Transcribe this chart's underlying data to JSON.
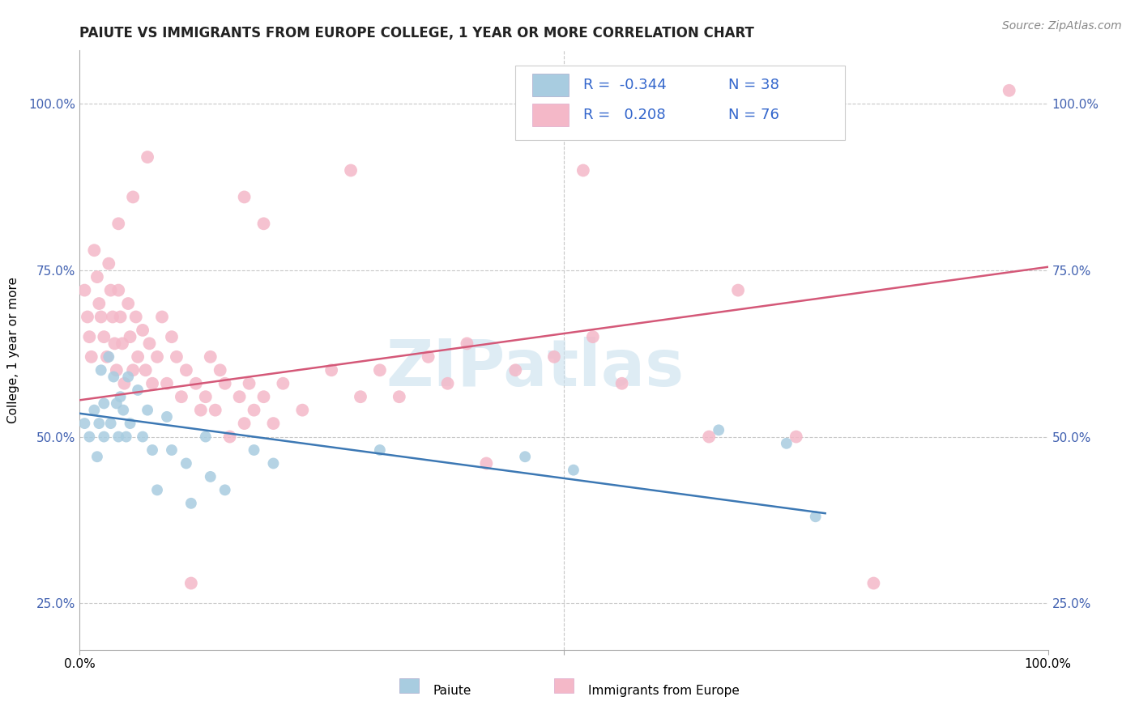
{
  "title": "PAIUTE VS IMMIGRANTS FROM EUROPE COLLEGE, 1 YEAR OR MORE CORRELATION CHART",
  "source_text": "Source: ZipAtlas.com",
  "ylabel": "College, 1 year or more",
  "xlim": [
    0.0,
    1.0
  ],
  "ylim": [
    0.18,
    1.08
  ],
  "ytick_labels": [
    "25.0%",
    "50.0%",
    "75.0%",
    "100.0%"
  ],
  "ytick_positions": [
    0.25,
    0.5,
    0.75,
    1.0
  ],
  "xtick_positions": [
    0.0,
    0.5,
    1.0
  ],
  "xtick_labels": [
    "0.0%",
    "",
    "100.0%"
  ],
  "legend_r_blue": "-0.344",
  "legend_n_blue": "38",
  "legend_r_pink": "0.208",
  "legend_n_pink": "76",
  "watermark": "ZIPatlas",
  "blue_color": "#a8cce0",
  "pink_color": "#f4b8c8",
  "blue_line_color": "#3c78b4",
  "pink_line_color": "#d45878",
  "grid_color": "#c8c8c8",
  "blue_scatter": [
    [
      0.005,
      0.52
    ],
    [
      0.01,
      0.5
    ],
    [
      0.015,
      0.54
    ],
    [
      0.018,
      0.47
    ],
    [
      0.02,
      0.52
    ],
    [
      0.022,
      0.6
    ],
    [
      0.025,
      0.55
    ],
    [
      0.025,
      0.5
    ],
    [
      0.03,
      0.62
    ],
    [
      0.032,
      0.52
    ],
    [
      0.035,
      0.59
    ],
    [
      0.038,
      0.55
    ],
    [
      0.04,
      0.5
    ],
    [
      0.042,
      0.56
    ],
    [
      0.045,
      0.54
    ],
    [
      0.048,
      0.5
    ],
    [
      0.05,
      0.59
    ],
    [
      0.052,
      0.52
    ],
    [
      0.06,
      0.57
    ],
    [
      0.065,
      0.5
    ],
    [
      0.07,
      0.54
    ],
    [
      0.075,
      0.48
    ],
    [
      0.08,
      0.42
    ],
    [
      0.09,
      0.53
    ],
    [
      0.095,
      0.48
    ],
    [
      0.11,
      0.46
    ],
    [
      0.115,
      0.4
    ],
    [
      0.13,
      0.5
    ],
    [
      0.135,
      0.44
    ],
    [
      0.15,
      0.42
    ],
    [
      0.18,
      0.48
    ],
    [
      0.2,
      0.46
    ],
    [
      0.31,
      0.48
    ],
    [
      0.46,
      0.47
    ],
    [
      0.51,
      0.45
    ],
    [
      0.66,
      0.51
    ],
    [
      0.73,
      0.49
    ],
    [
      0.76,
      0.38
    ]
  ],
  "pink_scatter": [
    [
      0.005,
      0.72
    ],
    [
      0.008,
      0.68
    ],
    [
      0.01,
      0.65
    ],
    [
      0.012,
      0.62
    ],
    [
      0.015,
      0.78
    ],
    [
      0.018,
      0.74
    ],
    [
      0.02,
      0.7
    ],
    [
      0.022,
      0.68
    ],
    [
      0.025,
      0.65
    ],
    [
      0.028,
      0.62
    ],
    [
      0.03,
      0.76
    ],
    [
      0.032,
      0.72
    ],
    [
      0.034,
      0.68
    ],
    [
      0.036,
      0.64
    ],
    [
      0.038,
      0.6
    ],
    [
      0.04,
      0.72
    ],
    [
      0.042,
      0.68
    ],
    [
      0.044,
      0.64
    ],
    [
      0.046,
      0.58
    ],
    [
      0.05,
      0.7
    ],
    [
      0.052,
      0.65
    ],
    [
      0.055,
      0.6
    ],
    [
      0.058,
      0.68
    ],
    [
      0.06,
      0.62
    ],
    [
      0.065,
      0.66
    ],
    [
      0.068,
      0.6
    ],
    [
      0.072,
      0.64
    ],
    [
      0.075,
      0.58
    ],
    [
      0.08,
      0.62
    ],
    [
      0.085,
      0.68
    ],
    [
      0.09,
      0.58
    ],
    [
      0.095,
      0.65
    ],
    [
      0.1,
      0.62
    ],
    [
      0.105,
      0.56
    ],
    [
      0.11,
      0.6
    ],
    [
      0.115,
      0.28
    ],
    [
      0.12,
      0.58
    ],
    [
      0.125,
      0.54
    ],
    [
      0.13,
      0.56
    ],
    [
      0.135,
      0.62
    ],
    [
      0.14,
      0.54
    ],
    [
      0.145,
      0.6
    ],
    [
      0.15,
      0.58
    ],
    [
      0.155,
      0.5
    ],
    [
      0.165,
      0.56
    ],
    [
      0.17,
      0.52
    ],
    [
      0.175,
      0.58
    ],
    [
      0.18,
      0.54
    ],
    [
      0.19,
      0.56
    ],
    [
      0.2,
      0.52
    ],
    [
      0.21,
      0.58
    ],
    [
      0.23,
      0.54
    ],
    [
      0.26,
      0.6
    ],
    [
      0.29,
      0.56
    ],
    [
      0.31,
      0.6
    ],
    [
      0.33,
      0.56
    ],
    [
      0.36,
      0.62
    ],
    [
      0.38,
      0.58
    ],
    [
      0.4,
      0.64
    ],
    [
      0.42,
      0.46
    ],
    [
      0.45,
      0.6
    ],
    [
      0.49,
      0.62
    ],
    [
      0.53,
      0.65
    ],
    [
      0.56,
      0.58
    ],
    [
      0.28,
      0.9
    ],
    [
      0.52,
      0.9
    ],
    [
      0.68,
      0.72
    ],
    [
      0.17,
      0.86
    ],
    [
      0.07,
      0.92
    ],
    [
      0.19,
      0.82
    ],
    [
      0.055,
      0.86
    ],
    [
      0.04,
      0.82
    ],
    [
      0.96,
      1.02
    ],
    [
      0.65,
      0.5
    ],
    [
      0.74,
      0.5
    ],
    [
      0.82,
      0.28
    ]
  ],
  "blue_size": 100,
  "pink_size": 130,
  "title_fontsize": 12,
  "axis_fontsize": 11,
  "tick_fontsize": 11,
  "legend_fontsize": 13,
  "source_fontsize": 10,
  "blue_line_x": [
    0.0,
    0.77
  ],
  "blue_line_y": [
    0.535,
    0.385
  ],
  "pink_line_x": [
    0.0,
    1.0
  ],
  "pink_line_y": [
    0.555,
    0.755
  ]
}
